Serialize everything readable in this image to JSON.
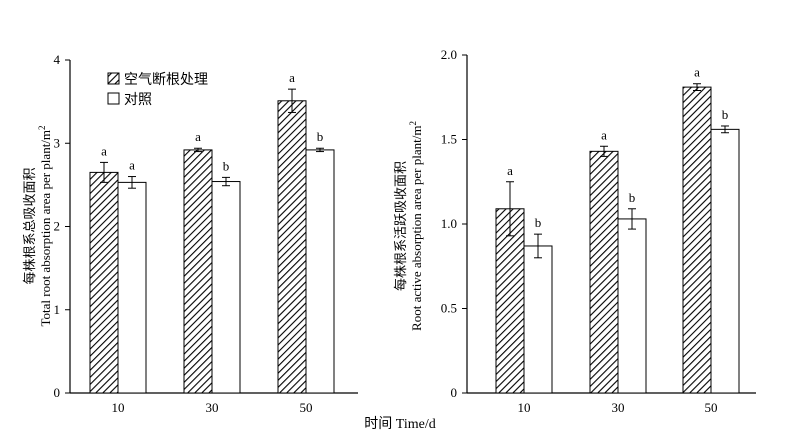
{
  "shared": {
    "xlabel": "时间 Time/d",
    "categories": [
      "10",
      "30",
      "50"
    ],
    "legend": [
      {
        "label": "空气断根处理",
        "pattern": "hatched"
      },
      {
        "label": "对照",
        "pattern": "open"
      }
    ]
  },
  "chart_data": [
    {
      "type": "bar",
      "ylabel_cn": "每株根系总吸收面积",
      "ylabel_en": "Total root absorption area per plant/m²",
      "ylim": [
        0,
        4
      ],
      "yticks": [
        "0",
        "1",
        "2",
        "3",
        "4"
      ],
      "categories": [
        "10",
        "30",
        "50"
      ],
      "legend_placement": "top-left",
      "series": [
        {
          "name": "空气断根处理",
          "values": [
            2.65,
            2.92,
            3.51
          ],
          "errors": [
            0.12,
            0.02,
            0.14
          ],
          "letters": [
            "a",
            "a",
            "a"
          ]
        },
        {
          "name": "对照",
          "values": [
            2.53,
            2.54,
            2.92
          ],
          "errors": [
            0.07,
            0.05,
            0.02
          ],
          "letters": [
            "a",
            "b",
            "b"
          ]
        }
      ]
    },
    {
      "type": "bar",
      "ylabel_cn": "每株根系活跃吸收面积",
      "ylabel_en": "Root active absorption area per plant/m²",
      "ylim": [
        0,
        2.0
      ],
      "yticks": [
        "0",
        "0.5",
        "1.0",
        "1.5",
        "2.0"
      ],
      "categories": [
        "10",
        "30",
        "50"
      ],
      "series": [
        {
          "name": "空气断根处理",
          "values": [
            1.09,
            1.43,
            1.81
          ],
          "errors": [
            0.16,
            0.03,
            0.02
          ],
          "letters": [
            "a",
            "a",
            "a"
          ]
        },
        {
          "name": "对照",
          "values": [
            0.87,
            1.03,
            1.56
          ],
          "errors": [
            0.07,
            0.06,
            0.02
          ],
          "letters": [
            "b",
            "b",
            "b"
          ]
        }
      ]
    }
  ]
}
